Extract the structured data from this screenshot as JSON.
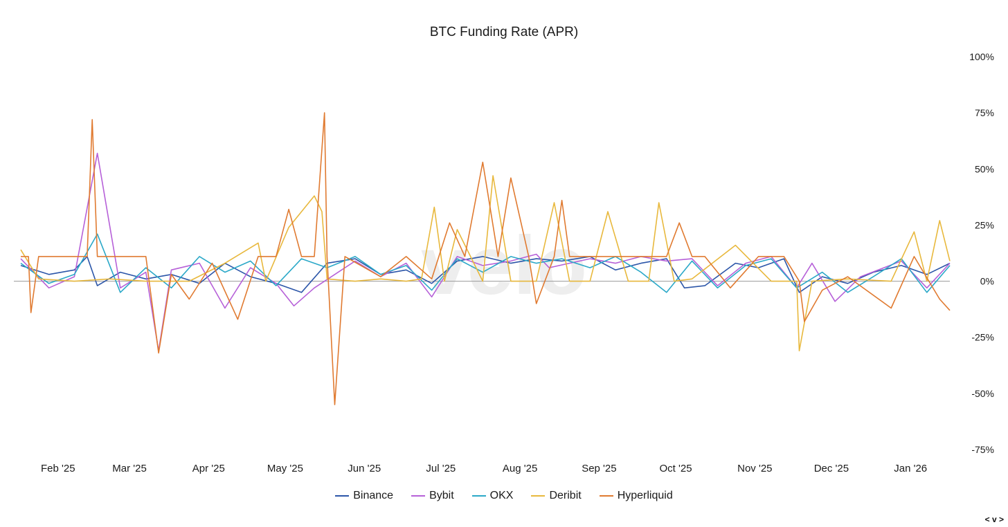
{
  "chart_data": {
    "type": "line",
    "title": "BTC Funding Rate (APR)",
    "watermark": "velo",
    "yticks": [
      "100%",
      "75%",
      "50%",
      "25%",
      "0%",
      "-25%",
      "-50%",
      "-75%"
    ],
    "ylim": [
      -75,
      100
    ],
    "x_start": "2025-01-25",
    "x_end": "2026-01-24",
    "xticks": [
      {
        "label": "Feb '25",
        "date": "2025-02-01"
      },
      {
        "label": "Mar '25",
        "date": "2025-03-01"
      },
      {
        "label": "Apr '25",
        "date": "2025-04-01"
      },
      {
        "label": "May '25",
        "date": "2025-05-01"
      },
      {
        "label": "Jun '25",
        "date": "2025-06-01"
      },
      {
        "label": "Jul '25",
        "date": "2025-07-01"
      },
      {
        "label": "Aug '25",
        "date": "2025-08-01"
      },
      {
        "label": "Sep '25",
        "date": "2025-09-01"
      },
      {
        "label": "Oct '25",
        "date": "2025-10-01"
      },
      {
        "label": "Nov '25",
        "date": "2025-11-01"
      },
      {
        "label": "Dec '25",
        "date": "2025-12-01"
      },
      {
        "label": "Jan '26",
        "date": "2026-01-01"
      }
    ],
    "legend_position": "bottom",
    "series": [
      {
        "name": "Binance",
        "color": "#2b55a8",
        "x": [
          "2025-01-25",
          "2025-02-05",
          "2025-02-15",
          "2025-02-20",
          "2025-02-24",
          "2025-03-05",
          "2025-03-15",
          "2025-03-25",
          "2025-04-05",
          "2025-04-15",
          "2025-04-25",
          "2025-05-05",
          "2025-05-15",
          "2025-05-25",
          "2025-06-05",
          "2025-06-15",
          "2025-06-25",
          "2025-07-05",
          "2025-07-15",
          "2025-07-25",
          "2025-08-05",
          "2025-08-15",
          "2025-08-25",
          "2025-09-05",
          "2025-09-15",
          "2025-09-25",
          "2025-10-05",
          "2025-10-12",
          "2025-10-20",
          "2025-11-01",
          "2025-11-10",
          "2025-11-20",
          "2025-11-26",
          "2025-12-05",
          "2025-12-15",
          "2025-12-25",
          "2026-01-05",
          "2026-01-15",
          "2026-01-24"
        ],
        "y": [
          7,
          3,
          5,
          11,
          -2,
          4,
          1,
          3,
          -1,
          8,
          2,
          -1,
          -5,
          8,
          10,
          3,
          5,
          -1,
          9,
          11,
          8,
          10,
          9,
          11,
          5,
          8,
          10,
          -3,
          -2,
          8,
          6,
          10,
          -5,
          2,
          -1,
          4,
          7,
          3,
          8
        ]
      },
      {
        "name": "Bybit",
        "color": "#b660d8",
        "x": [
          "2025-01-25",
          "2025-02-05",
          "2025-02-15",
          "2025-02-24",
          "2025-03-05",
          "2025-03-15",
          "2025-03-20",
          "2025-03-25",
          "2025-04-05",
          "2025-04-15",
          "2025-04-25",
          "2025-05-05",
          "2025-05-12",
          "2025-05-20",
          "2025-06-05",
          "2025-06-15",
          "2025-06-25",
          "2025-07-05",
          "2025-07-15",
          "2025-07-25",
          "2025-08-05",
          "2025-08-15",
          "2025-08-20",
          "2025-09-05",
          "2025-09-15",
          "2025-09-25",
          "2025-10-05",
          "2025-10-15",
          "2025-10-25",
          "2025-11-05",
          "2025-11-15",
          "2025-11-25",
          "2025-12-01",
          "2025-12-10",
          "2025-12-20",
          "2026-01-05",
          "2026-01-15",
          "2026-01-24"
        ],
        "y": [
          10,
          -3,
          2,
          57,
          -3,
          4,
          -31,
          5,
          8,
          -12,
          6,
          -1,
          -11,
          -3,
          9,
          2,
          8,
          -7,
          11,
          7,
          9,
          12,
          6,
          10,
          8,
          11,
          9,
          10,
          -2,
          8,
          11,
          -3,
          8,
          -9,
          2,
          9,
          -3,
          8
        ]
      },
      {
        "name": "OKX",
        "color": "#2aa8c8",
        "x": [
          "2025-01-25",
          "2025-02-05",
          "2025-02-15",
          "2025-02-24",
          "2025-03-05",
          "2025-03-15",
          "2025-03-25",
          "2025-04-05",
          "2025-04-15",
          "2025-04-25",
          "2025-05-05",
          "2025-05-15",
          "2025-05-25",
          "2025-06-05",
          "2025-06-15",
          "2025-06-25",
          "2025-07-05",
          "2025-07-15",
          "2025-07-25",
          "2025-08-05",
          "2025-08-15",
          "2025-08-25",
          "2025-09-05",
          "2025-09-15",
          "2025-09-25",
          "2025-10-05",
          "2025-10-15",
          "2025-10-25",
          "2025-11-05",
          "2025-11-15",
          "2025-11-25",
          "2025-12-05",
          "2025-12-15",
          "2025-12-25",
          "2026-01-05",
          "2026-01-15",
          "2026-01-24"
        ],
        "y": [
          8,
          -1,
          3,
          21,
          -5,
          6,
          -3,
          11,
          4,
          9,
          -2,
          10,
          6,
          11,
          3,
          7,
          -4,
          10,
          4,
          11,
          8,
          10,
          6,
          11,
          4,
          -5,
          9,
          -3,
          7,
          10,
          -3,
          4,
          -5,
          2,
          10,
          -5,
          7
        ]
      },
      {
        "name": "Deribit",
        "color": "#e8b83c",
        "x": [
          "2025-01-25",
          "2025-02-01",
          "2025-02-15",
          "2025-03-01",
          "2025-03-15",
          "2025-04-01",
          "2025-04-15",
          "2025-04-28",
          "2025-05-01",
          "2025-05-10",
          "2025-05-20",
          "2025-05-23",
          "2025-05-25",
          "2025-06-05",
          "2025-06-15",
          "2025-06-25",
          "2025-07-01",
          "2025-07-06",
          "2025-07-10",
          "2025-07-15",
          "2025-07-25",
          "2025-07-29",
          "2025-08-05",
          "2025-08-15",
          "2025-08-22",
          "2025-08-28",
          "2025-09-05",
          "2025-09-12",
          "2025-09-20",
          "2025-09-28",
          "2025-10-02",
          "2025-10-08",
          "2025-10-15",
          "2025-11-01",
          "2025-11-15",
          "2025-11-25",
          "2025-11-26",
          "2025-12-01",
          "2025-12-15",
          "2026-01-01",
          "2026-01-10",
          "2026-01-15",
          "2026-01-20",
          "2026-01-24"
        ],
        "y": [
          14,
          1,
          0,
          1,
          0,
          0,
          8,
          17,
          0,
          24,
          38,
          31,
          1,
          0,
          1,
          0,
          1,
          33,
          0,
          23,
          0,
          47,
          0,
          0,
          35,
          0,
          0,
          31,
          0,
          0,
          35,
          0,
          1,
          16,
          0,
          0,
          -31,
          0,
          1,
          0,
          22,
          0,
          27,
          9
        ]
      },
      {
        "name": "Hyperliquid",
        "color": "#e07a30",
        "x": [
          "2025-01-25",
          "2025-01-28",
          "2025-01-29",
          "2025-02-01",
          "2025-02-20",
          "2025-02-22",
          "2025-02-24",
          "2025-02-25",
          "2025-03-15",
          "2025-03-20",
          "2025-03-25",
          "2025-04-01",
          "2025-04-10",
          "2025-04-20",
          "2025-04-28",
          "2025-05-05",
          "2025-05-10",
          "2025-05-15",
          "2025-05-20",
          "2025-05-24",
          "2025-05-25",
          "2025-05-28",
          "2025-06-01",
          "2025-06-15",
          "2025-06-25",
          "2025-07-05",
          "2025-07-12",
          "2025-07-18",
          "2025-07-25",
          "2025-07-31",
          "2025-08-05",
          "2025-08-12",
          "2025-08-15",
          "2025-08-22",
          "2025-08-25",
          "2025-08-28",
          "2025-09-05",
          "2025-09-15",
          "2025-09-25",
          "2025-10-05",
          "2025-10-10",
          "2025-10-15",
          "2025-10-20",
          "2025-10-30",
          "2025-11-10",
          "2025-11-20",
          "2025-11-26",
          "2025-11-28",
          "2025-12-05",
          "2025-12-15",
          "2026-01-01",
          "2026-01-10",
          "2026-01-20",
          "2026-01-24"
        ],
        "y": [
          11,
          11,
          -14,
          11,
          11,
          72,
          11,
          11,
          11,
          -32,
          3,
          -8,
          8,
          -17,
          11,
          11,
          32,
          11,
          11,
          75,
          11,
          -55,
          11,
          2,
          11,
          1,
          26,
          11,
          53,
          11,
          46,
          11,
          -10,
          11,
          36,
          11,
          11,
          11,
          11,
          11,
          26,
          11,
          11,
          -3,
          11,
          11,
          0,
          -18,
          -4,
          2,
          -12,
          11,
          -8,
          -13
        ]
      }
    ]
  },
  "nav": {
    "label": "< v >"
  }
}
